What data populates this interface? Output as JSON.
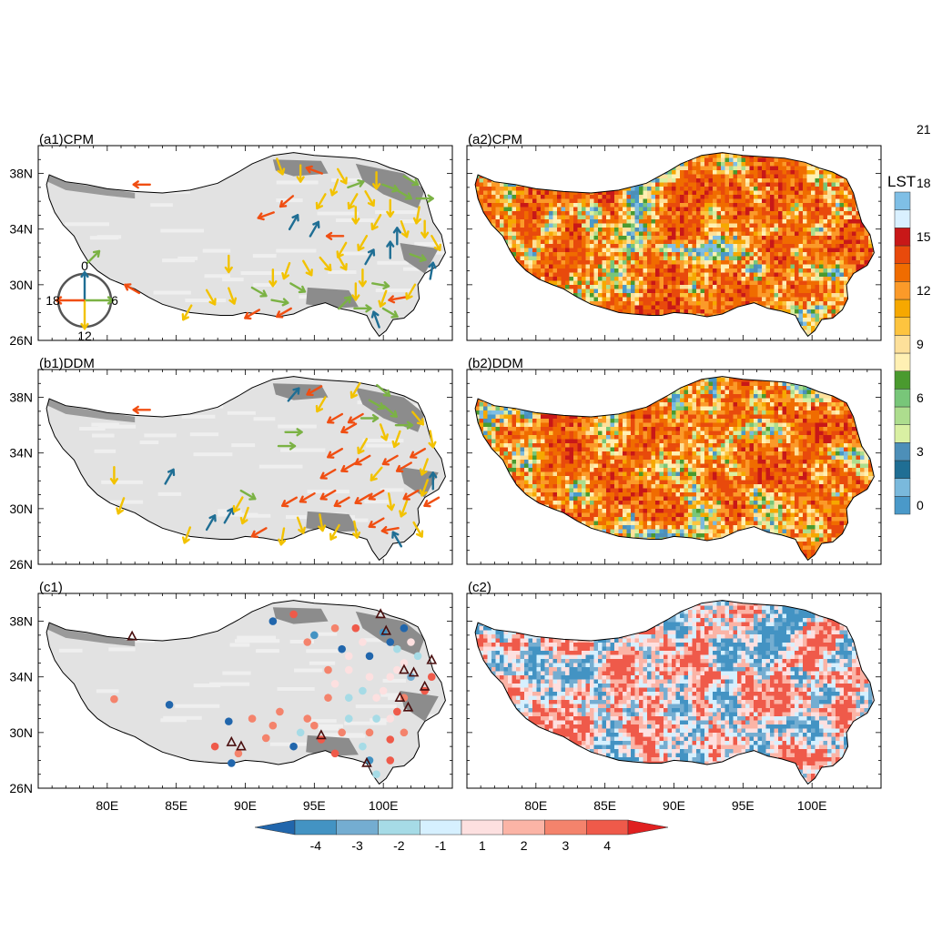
{
  "panels": [
    {
      "id": "a1",
      "label": "(a1)CPM",
      "kind": "arrows",
      "base": "elev",
      "col": 0,
      "row": 0
    },
    {
      "id": "a2",
      "label": "(a2)CPM",
      "kind": "grid",
      "palette": "lst",
      "col": 1,
      "row": 0
    },
    {
      "id": "b1",
      "label": "(b1)DDM",
      "kind": "arrows",
      "base": "elev",
      "col": 0,
      "row": 1
    },
    {
      "id": "b2",
      "label": "(b2)DDM",
      "kind": "grid",
      "palette": "lst",
      "col": 1,
      "row": 1
    },
    {
      "id": "c1",
      "label": "(c1)",
      "kind": "dots",
      "base": "elev",
      "col": 0,
      "row": 2
    },
    {
      "id": "c2",
      "label": "(c2)",
      "kind": "grid",
      "palette": "diff",
      "col": 1,
      "row": 2
    }
  ],
  "axes": {
    "lon_range": [
      75,
      105
    ],
    "lat_range": [
      26,
      40
    ],
    "x_tick_labels": [
      {
        "lon": 80,
        "text": "80E"
      },
      {
        "lon": 85,
        "text": "85E"
      },
      {
        "lon": 90,
        "text": "90E"
      },
      {
        "lon": 95,
        "text": "95E"
      },
      {
        "lon": 100,
        "text": "100E"
      }
    ],
    "y_tick_labels": [
      {
        "lat": 26,
        "text": "26N"
      },
      {
        "lat": 30,
        "text": "30N"
      },
      {
        "lat": 34,
        "text": "34N"
      },
      {
        "lat": 38,
        "text": "38N"
      }
    ]
  },
  "clock_legend": {
    "labels": [
      {
        "text": "0",
        "dir": "up"
      },
      {
        "text": "6",
        "dir": "right"
      },
      {
        "text": "12",
        "dir": "down"
      },
      {
        "text": "18",
        "dir": "left"
      }
    ],
    "colors": {
      "up": "#1f6e94",
      "right": "#7bb244",
      "down": "#f2c200",
      "left": "#f04e12"
    }
  },
  "lst_colorbar": {
    "title": "LST",
    "colors": [
      "#4a99c9",
      "#7ab9dc",
      "#1f6e94",
      "#4d8fb8",
      "#d9f0a3",
      "#addd8e",
      "#78c679",
      "#4a9a2f",
      "#fff0b3",
      "#fde09a",
      "#fdc43f",
      "#f6a800",
      "#fb9a29",
      "#f06c00",
      "#e84a0c",
      "#c81818",
      "#d9f0ff",
      "#7fbfe6"
    ],
    "tick_labels": [
      {
        "value": 0,
        "text": "0"
      },
      {
        "value": 3,
        "text": "3"
      },
      {
        "value": 6,
        "text": "6"
      },
      {
        "value": 9,
        "text": "9"
      },
      {
        "value": 12,
        "text": "12"
      },
      {
        "value": 15,
        "text": "15"
      },
      {
        "value": 18,
        "text": "18"
      },
      {
        "value": 21,
        "text": "21"
      }
    ]
  },
  "diff_colorbar": {
    "colors": [
      "#2166ac",
      "#4393c3",
      "#74add1",
      "#a6dbe6",
      "#d6f0ff",
      "#fde0e0",
      "#fbb4a6",
      "#f4836c",
      "#ef5a4a",
      "#e02020"
    ],
    "tick_labels": [
      {
        "value": -4,
        "text": "-4"
      },
      {
        "value": -3,
        "text": "-3"
      },
      {
        "value": -2,
        "text": "-2"
      },
      {
        "value": -1,
        "text": "-1"
      },
      {
        "value": 1,
        "text": "1"
      },
      {
        "value": 2,
        "text": "2"
      },
      {
        "value": 3,
        "text": "3"
      },
      {
        "value": 4,
        "text": "4"
      }
    ]
  },
  "tp_outline": [
    [
      75.8,
      37.9
    ],
    [
      77.0,
      37.4
    ],
    [
      78.5,
      37.2
    ],
    [
      80.0,
      36.9
    ],
    [
      82.0,
      36.7
    ],
    [
      84.0,
      36.6
    ],
    [
      86.0,
      36.8
    ],
    [
      88.0,
      37.3
    ],
    [
      89.5,
      38.1
    ],
    [
      90.5,
      38.7
    ],
    [
      92.0,
      39.3
    ],
    [
      93.5,
      39.5
    ],
    [
      95.0,
      39.3
    ],
    [
      96.5,
      39.2
    ],
    [
      98.0,
      39.1
    ],
    [
      99.5,
      38.8
    ],
    [
      100.5,
      38.4
    ],
    [
      101.5,
      38.1
    ],
    [
      102.5,
      37.6
    ],
    [
      103.0,
      36.6
    ],
    [
      103.3,
      35.5
    ],
    [
      103.6,
      34.5
    ],
    [
      104.2,
      33.6
    ],
    [
      104.5,
      32.3
    ],
    [
      104.0,
      31.4
    ],
    [
      103.0,
      30.8
    ],
    [
      102.5,
      30.0
    ],
    [
      102.6,
      29.0
    ],
    [
      102.2,
      28.2
    ],
    [
      101.5,
      27.6
    ],
    [
      100.7,
      27.5
    ],
    [
      100.2,
      26.7
    ],
    [
      99.7,
      26.3
    ],
    [
      99.2,
      27.0
    ],
    [
      98.8,
      27.8
    ],
    [
      97.8,
      28.1
    ],
    [
      96.8,
      28.3
    ],
    [
      95.8,
      28.7
    ],
    [
      94.6,
      28.4
    ],
    [
      93.5,
      27.9
    ],
    [
      92.4,
      27.7
    ],
    [
      91.3,
      27.9
    ],
    [
      90.0,
      28.0
    ],
    [
      89.1,
      27.8
    ],
    [
      88.2,
      27.8
    ],
    [
      87.0,
      27.9
    ],
    [
      86.0,
      28.0
    ],
    [
      85.0,
      28.3
    ],
    [
      84.0,
      28.6
    ],
    [
      83.0,
      29.1
    ],
    [
      82.0,
      29.7
    ],
    [
      81.2,
      30.0
    ],
    [
      80.2,
      30.4
    ],
    [
      79.3,
      31.0
    ],
    [
      78.6,
      31.7
    ],
    [
      78.1,
      32.5
    ],
    [
      77.6,
      33.5
    ],
    [
      76.8,
      34.3
    ],
    [
      76.2,
      35.2
    ],
    [
      75.8,
      36.2
    ],
    [
      75.6,
      37.2
    ],
    [
      75.8,
      37.9
    ]
  ],
  "elevation_dark_zones": [
    [
      [
        92.0,
        39.0
      ],
      [
        95.5,
        38.9
      ],
      [
        96.0,
        38.0
      ],
      [
        93.5,
        37.8
      ],
      [
        92.2,
        38.2
      ]
    ],
    [
      [
        98.0,
        38.7
      ],
      [
        101.5,
        38.0
      ],
      [
        103.0,
        36.8
      ],
      [
        102.5,
        35.5
      ],
      [
        100.0,
        36.5
      ],
      [
        98.5,
        37.5
      ]
    ],
    [
      [
        94.5,
        29.8
      ],
      [
        97.5,
        29.6
      ],
      [
        98.2,
        28.4
      ],
      [
        96.2,
        28.3
      ],
      [
        94.4,
        28.6
      ]
    ],
    [
      [
        101.2,
        33.0
      ],
      [
        104.0,
        32.6
      ],
      [
        103.0,
        30.8
      ],
      [
        101.5,
        31.8
      ]
    ]
  ],
  "arrows_a1": [
    [
      82.5,
      37.2,
      270
    ],
    [
      79.0,
      32.0,
      45
    ],
    [
      88.8,
      31.5,
      180
    ],
    [
      81.8,
      29.7,
      300
    ],
    [
      85.8,
      28.0,
      210
    ],
    [
      90.5,
      27.9,
      240
    ],
    [
      92.8,
      28.0,
      240
    ],
    [
      87.5,
      29.1,
      150
    ],
    [
      89.0,
      29.2,
      160
    ],
    [
      91.0,
      29.5,
      120
    ],
    [
      92.5,
      28.8,
      100
    ],
    [
      93.8,
      29.8,
      120
    ],
    [
      92.0,
      30.5,
      180
    ],
    [
      93.0,
      31.0,
      200
    ],
    [
      94.5,
      31.2,
      150
    ],
    [
      95.8,
      31.5,
      140
    ],
    [
      97.0,
      31.6,
      150
    ],
    [
      98.5,
      30.5,
      180
    ],
    [
      98.0,
      29.5,
      180
    ],
    [
      100.0,
      29.0,
      200
    ],
    [
      101.0,
      29.0,
      260
    ],
    [
      102.0,
      29.5,
      210
    ],
    [
      97.0,
      32.5,
      210
    ],
    [
      98.5,
      33.0,
      210
    ],
    [
      96.5,
      33.5,
      270
    ],
    [
      95.0,
      34.0,
      30
    ],
    [
      93.5,
      34.5,
      30
    ],
    [
      91.5,
      35.0,
      250
    ],
    [
      93.0,
      36.0,
      230
    ],
    [
      95.5,
      36.0,
      210
    ],
    [
      98.0,
      35.0,
      180
    ],
    [
      99.5,
      34.5,
      210
    ],
    [
      100.5,
      35.5,
      180
    ],
    [
      101.5,
      34.0,
      160
    ],
    [
      102.5,
      35.0,
      190
    ],
    [
      103.0,
      34.0,
      180
    ],
    [
      103.8,
      33.0,
      150
    ],
    [
      102.5,
      32.0,
      110
    ],
    [
      103.5,
      31.0,
      10
    ],
    [
      100.5,
      32.5,
      0
    ],
    [
      99.0,
      32.0,
      30
    ],
    [
      96.5,
      37.0,
      200
    ],
    [
      94.0,
      38.0,
      180
    ],
    [
      92.5,
      38.5,
      160
    ],
    [
      95.0,
      38.2,
      290
    ],
    [
      97.0,
      37.8,
      150
    ],
    [
      98.0,
      37.2,
      70
    ],
    [
      99.5,
      37.5,
      180
    ],
    [
      100.5,
      37.0,
      110
    ],
    [
      101.5,
      36.5,
      120
    ],
    [
      102.0,
      37.5,
      120
    ],
    [
      103.0,
      36.2,
      90
    ],
    [
      99.0,
      36.2,
      150
    ],
    [
      97.8,
      36.0,
      210
    ],
    [
      101.0,
      33.5,
      0
    ],
    [
      99.8,
      30.0,
      100
    ],
    [
      98.5,
      28.3,
      90
    ],
    [
      100.5,
      28.0,
      120
    ],
    [
      99.5,
      27.5,
      340
    ],
    [
      97.2,
      28.7,
      45
    ]
  ],
  "arrows_b1": [
    [
      82.5,
      37.1,
      270
    ],
    [
      80.5,
      32.4,
      180
    ],
    [
      84.5,
      32.3,
      30
    ],
    [
      81.0,
      30.2,
      200
    ],
    [
      85.8,
      28.1,
      200
    ],
    [
      87.5,
      29.0,
      30
    ],
    [
      88.8,
      29.5,
      30
    ],
    [
      90.0,
      29.5,
      200
    ],
    [
      89.5,
      30.3,
      210
    ],
    [
      90.2,
      31.0,
      120
    ],
    [
      91.0,
      28.3,
      240
    ],
    [
      92.7,
      28.0,
      190
    ],
    [
      94.0,
      28.8,
      160
    ],
    [
      95.5,
      29.0,
      170
    ],
    [
      93.2,
      30.5,
      240
    ],
    [
      94.5,
      30.8,
      240
    ],
    [
      96.0,
      31.0,
      240
    ],
    [
      97.0,
      30.5,
      240
    ],
    [
      98.5,
      30.7,
      240
    ],
    [
      99.5,
      31.0,
      240
    ],
    [
      100.5,
      30.5,
      170
    ],
    [
      101.5,
      30.0,
      200
    ],
    [
      102.0,
      31.0,
      240
    ],
    [
      103.0,
      31.5,
      200
    ],
    [
      103.5,
      30.5,
      240
    ],
    [
      96.0,
      32.5,
      240
    ],
    [
      97.5,
      33.0,
      240
    ],
    [
      98.5,
      33.5,
      240
    ],
    [
      99.5,
      32.5,
      220
    ],
    [
      100.5,
      33.5,
      240
    ],
    [
      101.5,
      33.0,
      240
    ],
    [
      102.5,
      34.0,
      240
    ],
    [
      101.0,
      35.0,
      200
    ],
    [
      100.0,
      35.5,
      160
    ],
    [
      103.5,
      35.0,
      170
    ],
    [
      102.5,
      36.5,
      140
    ],
    [
      101.5,
      36.0,
      90
    ],
    [
      100.5,
      37.0,
      130
    ],
    [
      99.5,
      37.5,
      120
    ],
    [
      100.0,
      38.5,
      130
    ],
    [
      98.0,
      38.5,
      210
    ],
    [
      95.5,
      37.5,
      210
    ],
    [
      93.5,
      38.2,
      40
    ],
    [
      95.0,
      38.5,
      240
    ],
    [
      96.5,
      36.5,
      240
    ],
    [
      98.0,
      36.5,
      240
    ],
    [
      99.0,
      36.5,
      90
    ],
    [
      97.5,
      35.8,
      240
    ],
    [
      93.5,
      35.5,
      90
    ],
    [
      93.0,
      34.5,
      90
    ],
    [
      96.5,
      34.0,
      240
    ],
    [
      98.5,
      34.5,
      210
    ],
    [
      103.0,
      33.0,
      200
    ],
    [
      103.6,
      32.0,
      0
    ],
    [
      99.5,
      29.0,
      240
    ],
    [
      100.5,
      28.5,
      260
    ],
    [
      98.0,
      28.5,
      170
    ],
    [
      101.0,
      27.8,
      330
    ],
    [
      96.5,
      28.3,
      210
    ],
    [
      102.5,
      28.5,
      150
    ]
  ],
  "dots_c1": [
    [
      80.5,
      32.4,
      3
    ],
    [
      84.5,
      32.0,
      -4
    ],
    [
      87.8,
      29.0,
      4
    ],
    [
      88.8,
      30.8,
      -4
    ],
    [
      89.5,
      28.5,
      3
    ],
    [
      89.0,
      27.8,
      -4
    ],
    [
      90.5,
      31.0,
      3
    ],
    [
      91.5,
      29.6,
      3
    ],
    [
      92.0,
      30.5,
      3
    ],
    [
      92.5,
      31.5,
      3
    ],
    [
      93.5,
      29.0,
      -4
    ],
    [
      94.0,
      30.0,
      -1
    ],
    [
      94.5,
      31.0,
      3
    ],
    [
      95.0,
      30.5,
      3
    ],
    [
      96.0,
      32.5,
      3
    ],
    [
      95.5,
      29.5,
      4
    ],
    [
      96.5,
      28.5,
      4
    ],
    [
      97.0,
      30.0,
      3
    ],
    [
      97.5,
      31.0,
      -1
    ],
    [
      97.5,
      32.5,
      -1
    ],
    [
      98.5,
      33.0,
      -1
    ],
    [
      98.5,
      29.0,
      -1
    ],
    [
      99.0,
      30.0,
      3
    ],
    [
      99.5,
      31.0,
      -1
    ],
    [
      99.5,
      32.5,
      1
    ],
    [
      99.0,
      28.0,
      -3
    ],
    [
      99.5,
      27.0,
      -1
    ],
    [
      100.5,
      28.0,
      4
    ],
    [
      100.5,
      29.5,
      4
    ],
    [
      100.5,
      31.0,
      1
    ],
    [
      100.0,
      33.0,
      1
    ],
    [
      100.5,
      34.0,
      1
    ],
    [
      101.5,
      30.0,
      3
    ],
    [
      101.0,
      31.5,
      4
    ],
    [
      101.5,
      32.5,
      3
    ],
    [
      101.0,
      34.5,
      1
    ],
    [
      102.0,
      34.0,
      -2
    ],
    [
      103.0,
      33.0,
      4
    ],
    [
      103.5,
      34.0,
      4
    ],
    [
      101.5,
      35.0,
      1
    ],
    [
      101.0,
      36.0,
      -1
    ],
    [
      102.5,
      35.5,
      -1
    ],
    [
      102.0,
      36.5,
      1
    ],
    [
      101.5,
      37.5,
      -4
    ],
    [
      100.5,
      36.5,
      -4
    ],
    [
      100.0,
      37.2,
      -3
    ],
    [
      98.0,
      37.5,
      4
    ],
    [
      98.5,
      36.5,
      1
    ],
    [
      99.0,
      35.5,
      -4
    ],
    [
      97.5,
      35.5,
      1
    ],
    [
      97.0,
      36.0,
      -4
    ],
    [
      96.5,
      37.5,
      3
    ],
    [
      95.0,
      37.0,
      -3
    ],
    [
      93.5,
      38.5,
      4
    ],
    [
      92.0,
      38.0,
      -4
    ],
    [
      94.5,
      36.5,
      3
    ],
    [
      96.0,
      34.5,
      3
    ],
    [
      96.5,
      33.5,
      1
    ],
    [
      97.5,
      34.5,
      1
    ],
    [
      99.0,
      34.0,
      1
    ]
  ],
  "triangles_c1": [
    [
      81.8,
      36.9
    ],
    [
      89.0,
      29.3
    ],
    [
      89.7,
      29.0
    ],
    [
      95.5,
      29.8
    ],
    [
      98.8,
      27.8
    ],
    [
      99.8,
      38.5
    ],
    [
      100.2,
      37.3
    ],
    [
      101.2,
      32.5
    ],
    [
      101.8,
      31.8
    ],
    [
      101.5,
      34.5
    ],
    [
      102.2,
      34.3
    ],
    [
      103.5,
      35.2
    ],
    [
      103.0,
      33.3
    ]
  ]
}
